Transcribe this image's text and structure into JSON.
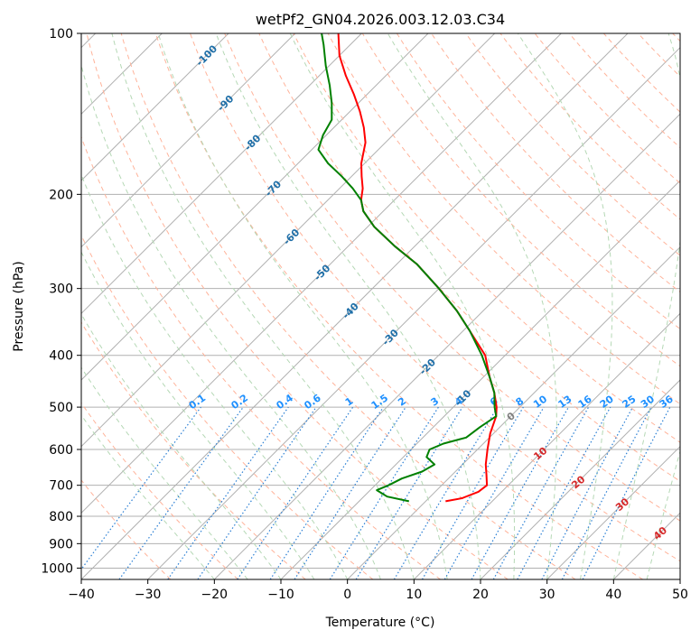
{
  "chart_data": {
    "type": "line",
    "title": "wetPf2_GN04.2026.003.12.03.C34",
    "xlabel": "Temperature (°C)",
    "ylabel": "Pressure (hPa)",
    "xlim": [
      -40,
      50
    ],
    "ylim": [
      1050,
      100
    ],
    "x_ticks": [
      "−40",
      "−30",
      "−20",
      "−10",
      "0",
      "10",
      "20",
      "30",
      "40",
      "50"
    ],
    "y_ticks": [
      "100",
      "200",
      "300",
      "400",
      "500",
      "600",
      "700",
      "800",
      "900",
      "1000"
    ],
    "y_tick_values": [
      100,
      200,
      300,
      400,
      500,
      600,
      700,
      800,
      900,
      1000
    ],
    "skew": 45,
    "series": [
      {
        "name": "temperature",
        "color": "#ff0000",
        "points": [
          {
            "p": 750,
            "t": 3.0
          },
          {
            "p": 740,
            "t": 5.0
          },
          {
            "p": 720,
            "t": 6.5
          },
          {
            "p": 700,
            "t": 6.8
          },
          {
            "p": 670,
            "t": 5.2
          },
          {
            "p": 640,
            "t": 3.5
          },
          {
            "p": 600,
            "t": 1.5
          },
          {
            "p": 560,
            "t": -0.5
          },
          {
            "p": 520,
            "t": -2.2
          },
          {
            "p": 500,
            "t": -3.5
          },
          {
            "p": 470,
            "t": -6.0
          },
          {
            "p": 440,
            "t": -9.0
          },
          {
            "p": 400,
            "t": -13.0
          },
          {
            "p": 360,
            "t": -19.0
          },
          {
            "p": 330,
            "t": -24.0
          },
          {
            "p": 300,
            "t": -30.0
          },
          {
            "p": 270,
            "t": -37.0
          },
          {
            "p": 250,
            "t": -43.0
          },
          {
            "p": 230,
            "t": -49.0
          },
          {
            "p": 215,
            "t": -53.0
          },
          {
            "p": 205,
            "t": -55.0
          },
          {
            "p": 195,
            "t": -56.5
          },
          {
            "p": 185,
            "t": -58.5
          },
          {
            "p": 175,
            "t": -60.5
          },
          {
            "p": 160,
            "t": -63.0
          },
          {
            "p": 150,
            "t": -65.5
          },
          {
            "p": 140,
            "t": -68.5
          },
          {
            "p": 130,
            "t": -72.0
          },
          {
            "p": 120,
            "t": -76.0
          },
          {
            "p": 110,
            "t": -80.0
          },
          {
            "p": 100,
            "t": -83.5
          }
        ]
      },
      {
        "name": "dewpoint",
        "color": "#008000",
        "points": [
          {
            "p": 750,
            "t": -2.5
          },
          {
            "p": 735,
            "t": -6.5
          },
          {
            "p": 715,
            "t": -9.0
          },
          {
            "p": 700,
            "t": -8.0
          },
          {
            "p": 680,
            "t": -7.0
          },
          {
            "p": 660,
            "t": -5.0
          },
          {
            "p": 640,
            "t": -4.2
          },
          {
            "p": 620,
            "t": -6.5
          },
          {
            "p": 600,
            "t": -7.2
          },
          {
            "p": 585,
            "t": -6.0
          },
          {
            "p": 570,
            "t": -3.5
          },
          {
            "p": 545,
            "t": -3.0
          },
          {
            "p": 520,
            "t": -2.2
          },
          {
            "p": 500,
            "t": -3.8
          },
          {
            "p": 470,
            "t": -6.0
          },
          {
            "p": 440,
            "t": -9.0
          },
          {
            "p": 400,
            "t": -13.5
          },
          {
            "p": 360,
            "t": -19.0
          },
          {
            "p": 330,
            "t": -24.0
          },
          {
            "p": 300,
            "t": -30.0
          },
          {
            "p": 270,
            "t": -37.0
          },
          {
            "p": 250,
            "t": -43.0
          },
          {
            "p": 230,
            "t": -49.0
          },
          {
            "p": 215,
            "t": -53.0
          },
          {
            "p": 205,
            "t": -55.0
          },
          {
            "p": 195,
            "t": -58.0
          },
          {
            "p": 185,
            "t": -61.5
          },
          {
            "p": 175,
            "t": -65.5
          },
          {
            "p": 165,
            "t": -69.0
          },
          {
            "p": 155,
            "t": -70.5
          },
          {
            "p": 145,
            "t": -71.5
          },
          {
            "p": 135,
            "t": -74.0
          },
          {
            "p": 125,
            "t": -77.0
          },
          {
            "p": 115,
            "t": -80.5
          },
          {
            "p": 105,
            "t": -84.0
          },
          {
            "p": 100,
            "t": -86.0
          }
        ]
      }
    ],
    "dry_adiabat_labels": [
      "-100",
      "-90",
      "-80",
      "-70",
      "-60",
      "-50",
      "-40",
      "-30",
      "-20",
      "-10"
    ],
    "mixing_ratio_labels": [
      "0.1",
      "0.2",
      "0.4",
      "0.6",
      "1",
      "1.5",
      "2",
      "3",
      "4",
      "6",
      "8",
      "10",
      "13",
      "16",
      "20",
      "25",
      "30",
      "36"
    ],
    "moist_adiabat_labels": [
      "0",
      "10",
      "20",
      "30",
      "40"
    ],
    "colors": {
      "temperature": "#ff0000",
      "dewpoint": "#008000",
      "isotherm": "#b0b0b0",
      "dry_adiabat": "#ffb39a",
      "moist_adiabat": "#b5d8b5",
      "mixing_ratio": "#2a7fd4",
      "dry_label": "#1f6fa8",
      "mix_label": "#1e90ff",
      "moist_label": "#d62728",
      "moist_zero_label": "#808080"
    }
  }
}
